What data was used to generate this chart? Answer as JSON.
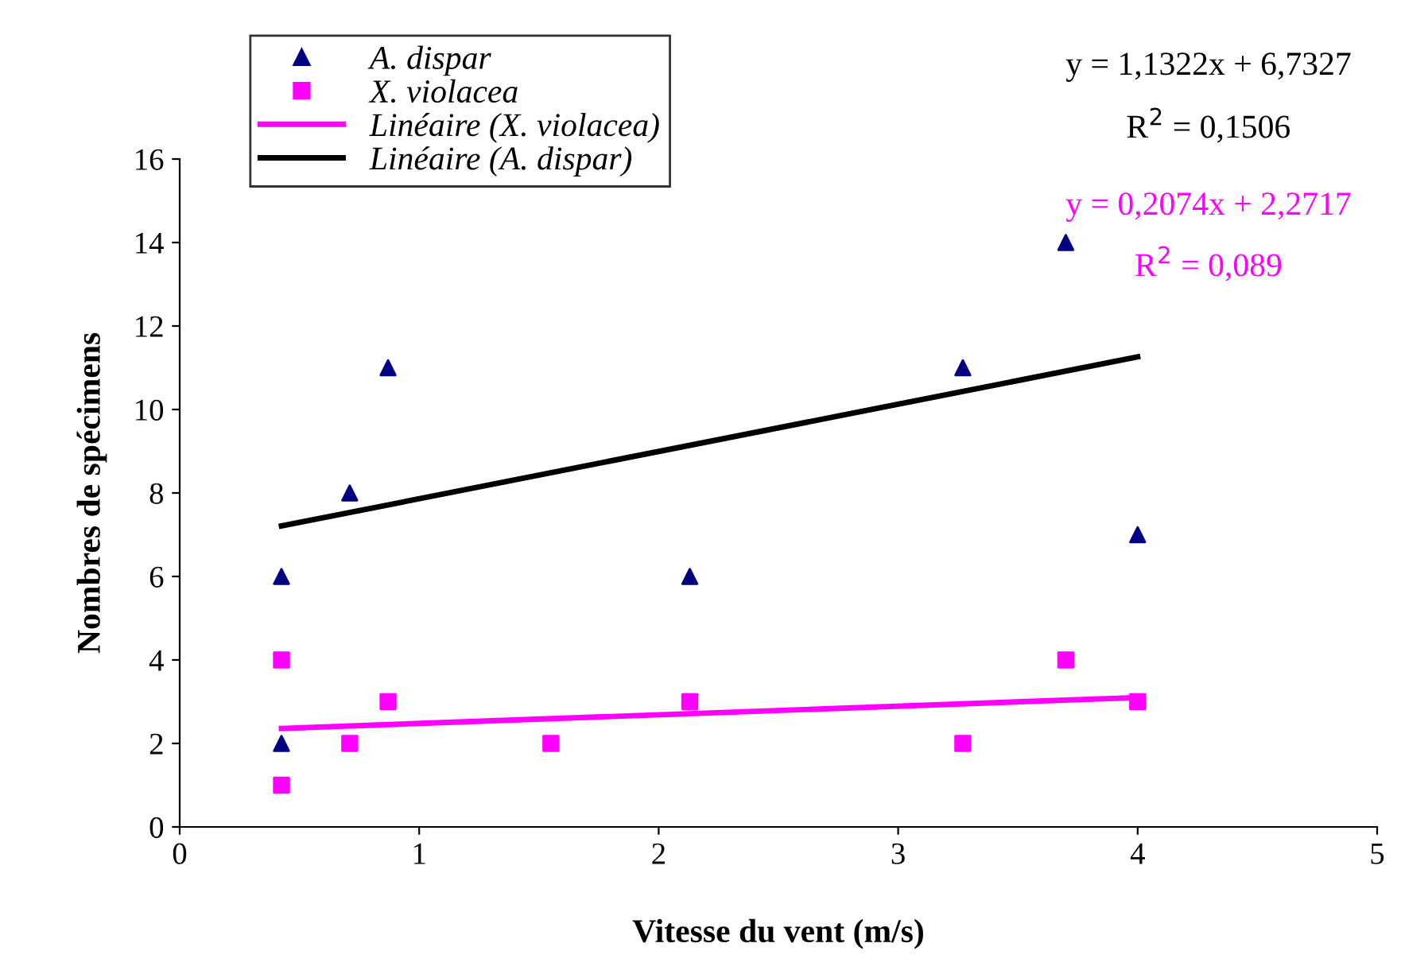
{
  "chart_data": {
    "type": "scatter",
    "xlabel": "Vitesse du vent (m/s)",
    "ylabel": "Nombres de spécimens",
    "xlim": [
      0,
      5
    ],
    "xticks": [
      0,
      1,
      2,
      3,
      4,
      5
    ],
    "ylim": [
      0,
      16
    ],
    "yticks": [
      0,
      2,
      4,
      6,
      8,
      10,
      12,
      14,
      16
    ],
    "grid": false,
    "legend": "top left",
    "series": [
      {
        "name": "A. dispar",
        "marker": "triangle",
        "color": "#000080",
        "x": [
          0.425,
          0.425,
          0.71,
          0.87,
          2.13,
          3.27,
          3.7,
          4.0
        ],
        "values": [
          6,
          2,
          8,
          11,
          6,
          11,
          14,
          7
        ]
      },
      {
        "name": "X. violacea",
        "marker": "square",
        "color": "#ff00ff",
        "x": [
          0.425,
          0.425,
          0.71,
          0.87,
          1.55,
          2.13,
          3.27,
          3.7,
          4.0
        ],
        "values": [
          4,
          1,
          2,
          3,
          2,
          3,
          2,
          4,
          3
        ]
      },
      {
        "name": "Linéaire (X. violacea)",
        "type": "line",
        "marker": "none",
        "line_style": "solid",
        "color": "#ff00ff",
        "x": [
          0.425,
          4.0
        ],
        "values": [
          2.36,
          3.1
        ]
      },
      {
        "name": "Linéaire (A. dispar)",
        "type": "line",
        "marker": "none",
        "line_style": "solid",
        "color": "#000000",
        "x": [
          0.425,
          4.0
        ],
        "values": [
          7.21,
          11.26
        ]
      }
    ],
    "annotations": [
      "y = 1,1322x + 6,7327",
      "R$^{2}$ = 0,1506",
      "y = 0,2074x + 2,2717",
      "R$^{2}$ = 0,089"
    ]
  }
}
